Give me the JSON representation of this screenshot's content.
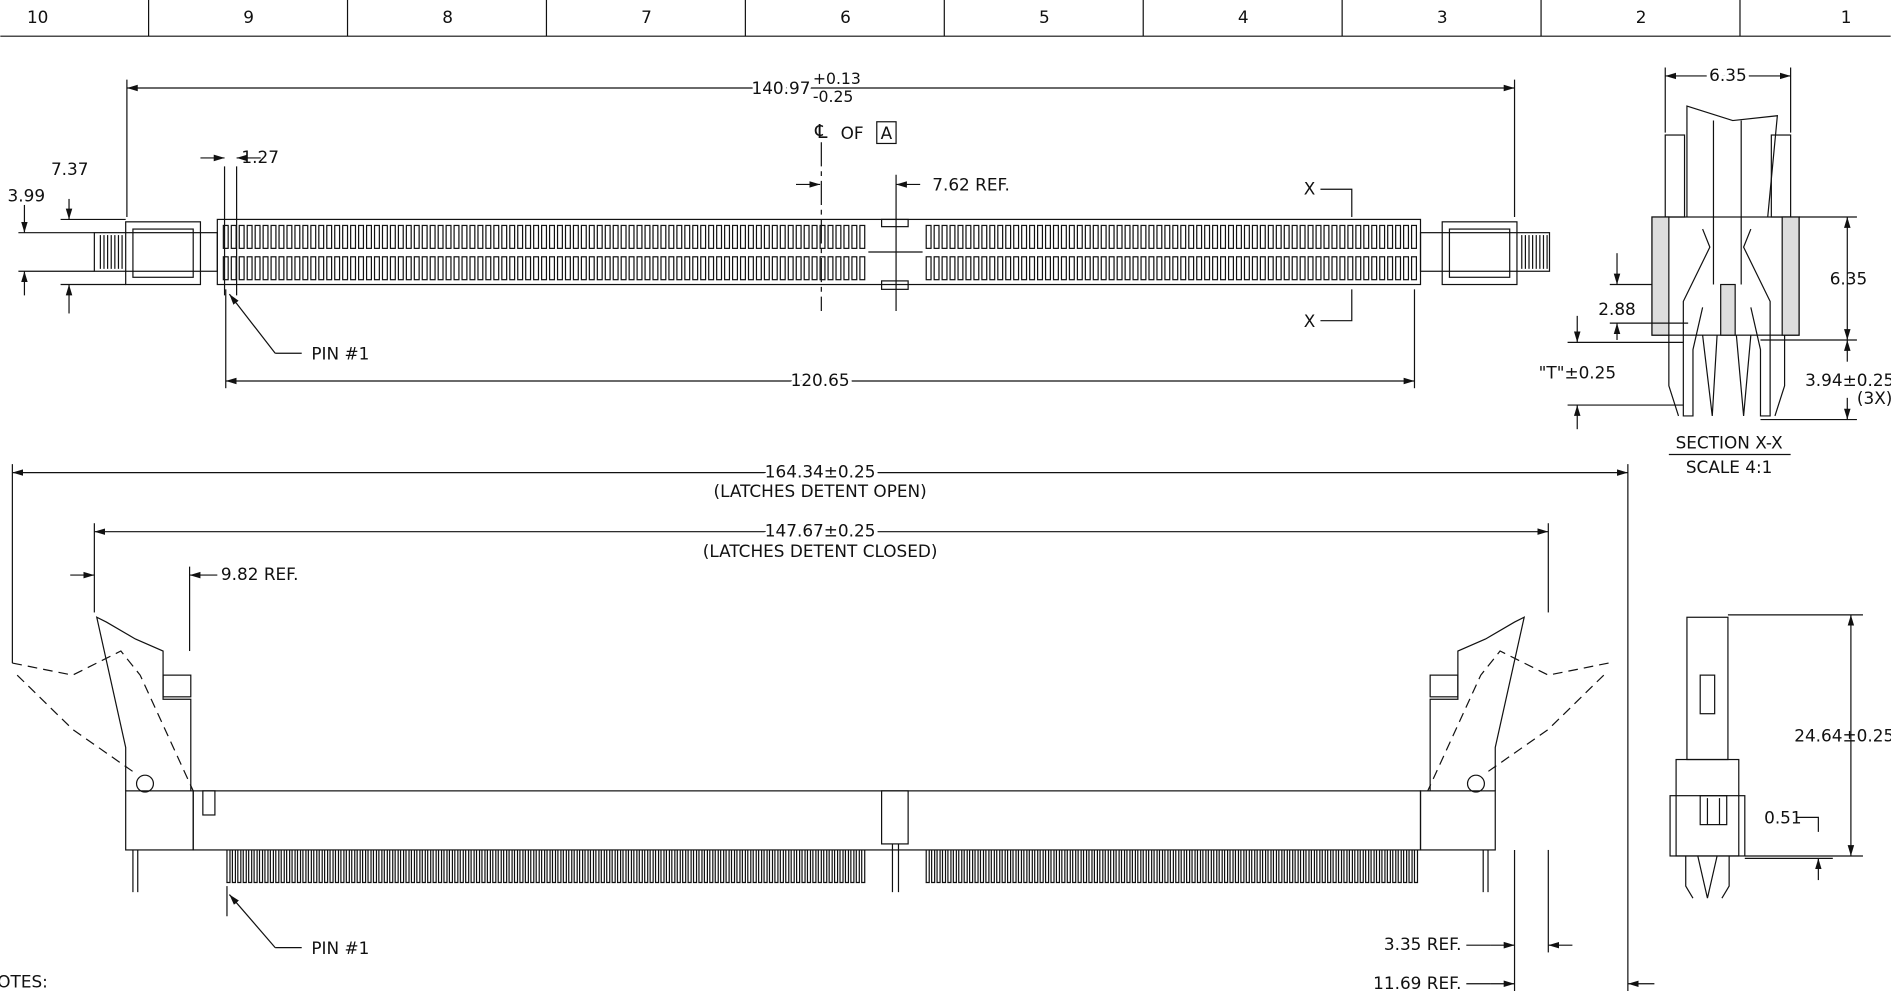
{
  "title_block": {
    "zones": [
      "10",
      "9",
      "8",
      "7",
      "6",
      "5",
      "4",
      "3",
      "2",
      "1"
    ]
  },
  "top_view": {
    "overall": "140.97",
    "tol_plus": "+0.13",
    "tol_minus": "-0.25",
    "centerline": "℄",
    "centerline_of": "OF",
    "datum": "A",
    "pitch": "1.27",
    "dim_a": "7.37",
    "dim_b": "3.99",
    "key_offset": "7.62 REF.",
    "section_mark_top": "X",
    "section_mark_bottom": "X",
    "pin_label": "PIN #1",
    "pin_span": "120.65"
  },
  "section": {
    "width": "6.35",
    "height": "6.35",
    "dim_c": "2.88",
    "tail": "\"T\"±0.25",
    "dim_d": "3.94±0.25",
    "count": "(3X)",
    "title": "SECTION X-X",
    "scale": "SCALE 4:1"
  },
  "front_view": {
    "open_length": "164.34±0.25",
    "open_note": "(LATCHES DETENT OPEN)",
    "closed_length": "147.67±0.25",
    "closed_note": "(LATCHES DETENT CLOSED)",
    "latch_ref": "9.82 REF.",
    "pin_label": "PIN #1",
    "ref_a": "3.35 REF.",
    "ref_b": "11.69 REF."
  },
  "side_view": {
    "height": "24.64±0.25",
    "offset": "0.51"
  },
  "notes": {
    "heading": "NOTES:"
  }
}
